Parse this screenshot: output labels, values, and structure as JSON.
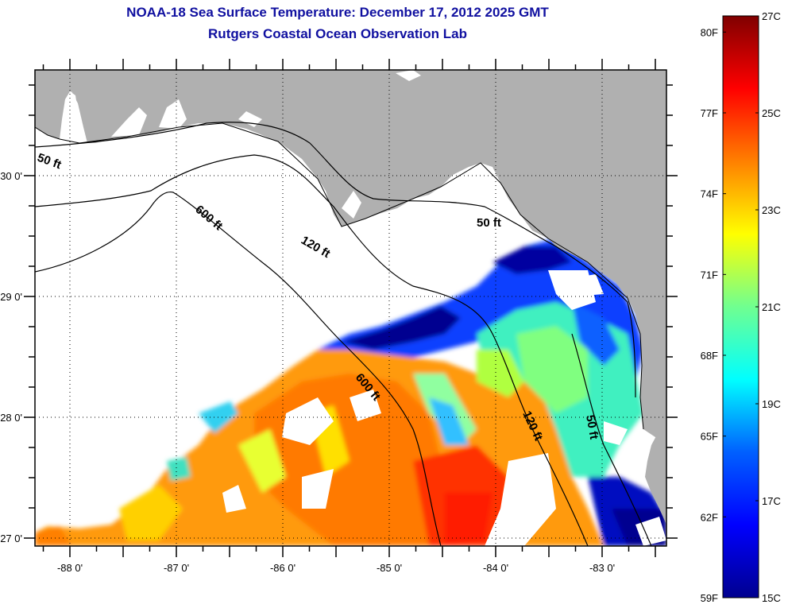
{
  "title": {
    "line1": "NOAA-18 Sea Surface Temperature:  December 17, 2012 2025 GMT",
    "line2": "Rutgers Coastal Ocean Observation Lab"
  },
  "map": {
    "region": "Northeastern Gulf of Mexico / Florida Big Bend",
    "lon_range": [
      -88.33,
      -82.4
    ],
    "lat_range": [
      26.93,
      30.87
    ],
    "lon_ticks": [
      {
        "value": -88,
        "label": "-88 0'"
      },
      {
        "value": -87,
        "label": "-87 0'"
      },
      {
        "value": -86,
        "label": "-86 0'"
      },
      {
        "value": -85,
        "label": "-85 0'"
      },
      {
        "value": -84,
        "label": "-84 0'"
      },
      {
        "value": -83,
        "label": "-83 0'"
      }
    ],
    "lat_ticks": [
      {
        "value": 30,
        "label": "30 0'"
      },
      {
        "value": 29,
        "label": "29 0'"
      },
      {
        "value": 28,
        "label": "28 0'"
      },
      {
        "value": 27,
        "label": "27 0'"
      }
    ],
    "contour_labels": [
      {
        "id": "50ft-west",
        "text": "50 ft"
      },
      {
        "id": "600ft-north",
        "text": "600 ft"
      },
      {
        "id": "120ft-north",
        "text": "120 ft"
      },
      {
        "id": "50ft-bigbend",
        "text": "50 ft"
      },
      {
        "id": "600ft-south",
        "text": "600 ft"
      },
      {
        "id": "120ft-south",
        "text": "120 ft"
      },
      {
        "id": "50ft-south",
        "text": "50 ft"
      }
    ],
    "colors": {
      "land": "#b0b0b0",
      "no_data": "#ffffff",
      "grid": "#000000"
    }
  },
  "colorbar": {
    "range_c": [
      15,
      27
    ],
    "range_f": [
      59,
      80.6
    ],
    "celsius_labels": [
      "27C",
      "25C",
      "23C",
      "21C",
      "19C",
      "17C",
      "15C"
    ],
    "celsius_values": [
      27,
      25,
      23,
      21,
      19,
      17,
      15
    ],
    "fahrenheit_labels": [
      "80F",
      "77F",
      "74F",
      "71F",
      "68F",
      "65F",
      "62F",
      "59F"
    ],
    "fahrenheit_values": [
      80,
      77,
      74,
      71,
      68,
      65,
      62,
      59
    ],
    "colormap": [
      "#00008f",
      "#0000ff",
      "#0080ff",
      "#00ffff",
      "#80ff80",
      "#ffff00",
      "#ff8000",
      "#ff0000",
      "#800000"
    ]
  }
}
